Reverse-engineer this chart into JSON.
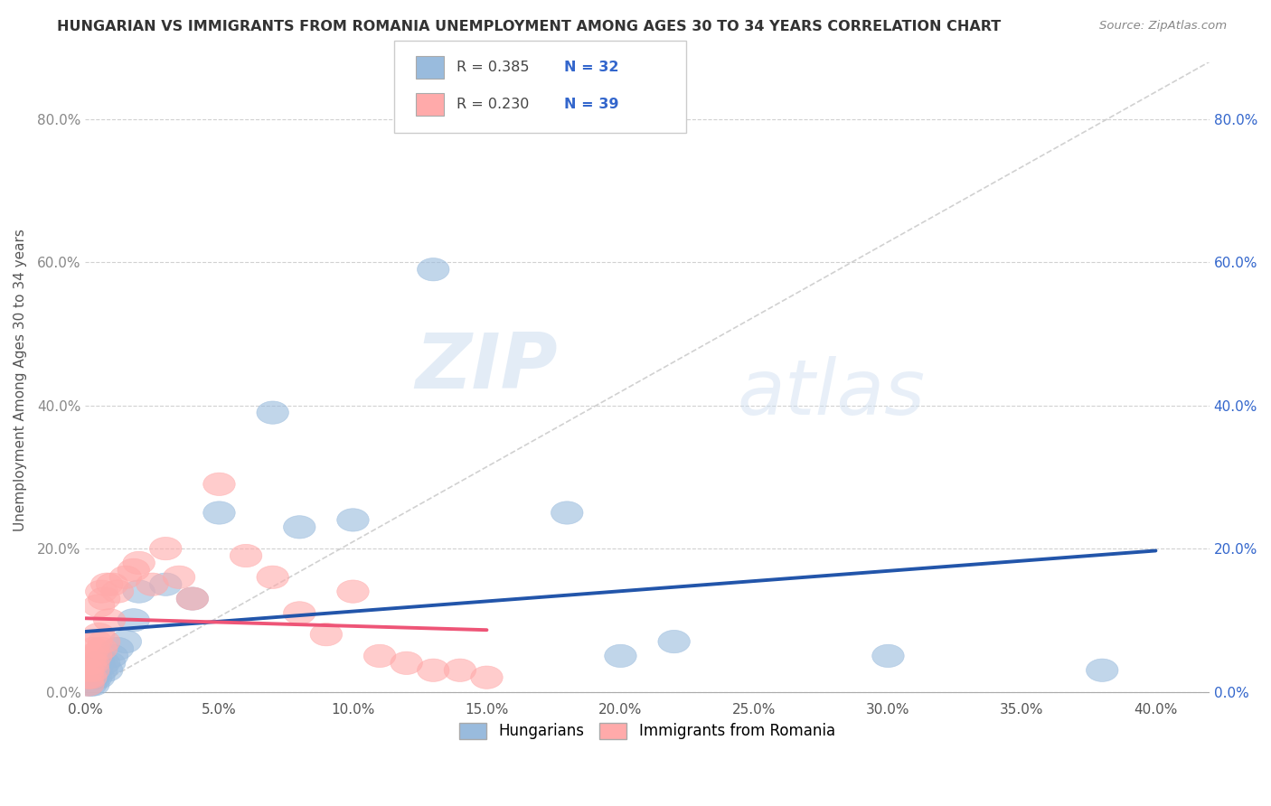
{
  "title": "HUNGARIAN VS IMMIGRANTS FROM ROMANIA UNEMPLOYMENT AMONG AGES 30 TO 34 YEARS CORRELATION CHART",
  "source": "Source: ZipAtlas.com",
  "ylabel": "Unemployment Among Ages 30 to 34 years",
  "xlim": [
    0.0,
    0.42
  ],
  "ylim": [
    -0.01,
    0.88
  ],
  "x_ticks": [
    0.0,
    0.05,
    0.1,
    0.15,
    0.2,
    0.25,
    0.3,
    0.35,
    0.4
  ],
  "y_ticks": [
    0.0,
    0.2,
    0.4,
    0.6,
    0.8
  ],
  "background_color": "#ffffff",
  "watermark_zip": "ZIP",
  "watermark_atlas": "atlas",
  "legend_r1": "R = 0.385",
  "legend_n1": "N = 32",
  "legend_r2": "R = 0.230",
  "legend_n2": "N = 39",
  "blue_scatter_color": "#99BBDD",
  "pink_scatter_color": "#FFAAAA",
  "blue_line_color": "#2255AA",
  "pink_line_color": "#EE5577",
  "dashed_line_color": "#CCCCCC",
  "left_tick_color": "#888888",
  "right_tick_color": "#3366CC",
  "hungarian_x": [
    0.001,
    0.001,
    0.002,
    0.002,
    0.003,
    0.003,
    0.003,
    0.004,
    0.004,
    0.005,
    0.005,
    0.006,
    0.007,
    0.008,
    0.009,
    0.01,
    0.012,
    0.015,
    0.018,
    0.02,
    0.03,
    0.04,
    0.05,
    0.07,
    0.08,
    0.1,
    0.13,
    0.18,
    0.2,
    0.22,
    0.3,
    0.38
  ],
  "hungarian_y": [
    0.01,
    0.02,
    0.01,
    0.03,
    0.02,
    0.03,
    0.01,
    0.02,
    0.03,
    0.02,
    0.04,
    0.03,
    0.04,
    0.03,
    0.04,
    0.05,
    0.06,
    0.07,
    0.1,
    0.14,
    0.15,
    0.13,
    0.25,
    0.39,
    0.23,
    0.24,
    0.59,
    0.25,
    0.05,
    0.07,
    0.05,
    0.03
  ],
  "romania_x": [
    0.001,
    0.001,
    0.001,
    0.002,
    0.002,
    0.002,
    0.003,
    0.003,
    0.003,
    0.004,
    0.004,
    0.005,
    0.005,
    0.006,
    0.006,
    0.007,
    0.007,
    0.008,
    0.009,
    0.01,
    0.012,
    0.015,
    0.018,
    0.02,
    0.025,
    0.03,
    0.035,
    0.04,
    0.05,
    0.06,
    0.07,
    0.08,
    0.09,
    0.1,
    0.11,
    0.12,
    0.13,
    0.14,
    0.15
  ],
  "romania_y": [
    0.01,
    0.02,
    0.03,
    0.02,
    0.04,
    0.05,
    0.03,
    0.06,
    0.04,
    0.05,
    0.07,
    0.08,
    0.12,
    0.06,
    0.14,
    0.07,
    0.13,
    0.15,
    0.1,
    0.15,
    0.14,
    0.16,
    0.17,
    0.18,
    0.15,
    0.2,
    0.16,
    0.13,
    0.29,
    0.19,
    0.16,
    0.11,
    0.08,
    0.14,
    0.05,
    0.04,
    0.03,
    0.03,
    0.02
  ]
}
